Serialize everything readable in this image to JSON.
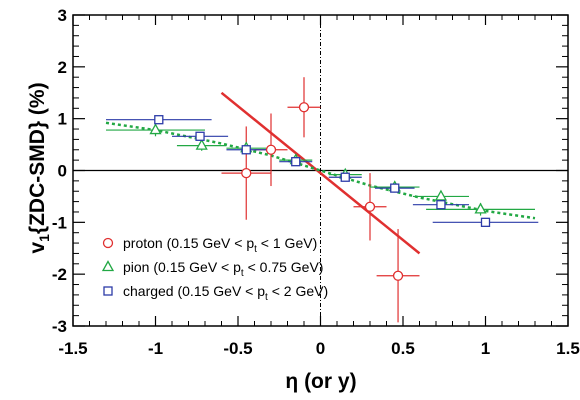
{
  "chart_data": {
    "type": "scatter",
    "title": "",
    "xlabel": "η (or y)",
    "ylabel_main": "v",
    "ylabel_sub": "1",
    "ylabel_rest": "{ZDC-SMD} (%)",
    "xlim": [
      -1.5,
      1.5
    ],
    "ylim": [
      -3,
      3
    ],
    "x_ticks": [
      -1.5,
      -1,
      -0.5,
      0,
      0.5,
      1,
      1.5
    ],
    "x_tick_labels": [
      "-1.5",
      "-1",
      "-0.5",
      "0",
      "0.5",
      "1",
      "1.5"
    ],
    "y_ticks": [
      -3,
      -2,
      -1,
      0,
      1,
      2,
      3
    ],
    "y_tick_labels": [
      "-3",
      "-2",
      "-1",
      "0",
      "1",
      "2",
      "3"
    ],
    "grid": false,
    "legend_position": "bottom-left",
    "series": [
      {
        "name": "proton (0.15 GeV < p_t < 1 GeV)",
        "legend_parts": [
          "proton (0.15 GeV < p",
          "t",
          " < 1 GeV)"
        ],
        "marker": "circle",
        "color": "#e03030",
        "points": [
          {
            "x": -0.45,
            "y": -0.05,
            "xerr": 0.15,
            "yerr": 0.9
          },
          {
            "x": -0.3,
            "y": 0.4,
            "xerr": 0.1,
            "yerr": 0.7
          },
          {
            "x": -0.1,
            "y": 1.22,
            "xerr": 0.1,
            "yerr": 0.58
          },
          {
            "x": 0.3,
            "y": -0.7,
            "xerr": 0.1,
            "yerr": 0.65
          },
          {
            "x": 0.47,
            "y": -2.03,
            "xerr": 0.13,
            "yerr": 0.9
          }
        ]
      },
      {
        "name": "pion (0.15 GeV < p_t < 0.75 GeV)",
        "legend_parts": [
          "pion (0.15 GeV < p",
          "t",
          " < 0.75 GeV)"
        ],
        "marker": "triangle",
        "color": "#22a844",
        "points": [
          {
            "x": -1.0,
            "y": 0.78,
            "xerr": 0.3,
            "yerr": 0.12
          },
          {
            "x": -0.72,
            "y": 0.48,
            "xerr": 0.15,
            "yerr": 0.1
          },
          {
            "x": -0.45,
            "y": 0.43,
            "xerr": 0.12,
            "yerr": 0.1
          },
          {
            "x": -0.15,
            "y": 0.2,
            "xerr": 0.1,
            "yerr": 0.08
          },
          {
            "x": 0.15,
            "y": -0.08,
            "xerr": 0.1,
            "yerr": 0.08
          },
          {
            "x": 0.45,
            "y": -0.32,
            "xerr": 0.15,
            "yerr": 0.1
          },
          {
            "x": 0.73,
            "y": -0.5,
            "xerr": 0.17,
            "yerr": 0.1
          },
          {
            "x": 0.97,
            "y": -0.75,
            "xerr": 0.33,
            "yerr": 0.12
          }
        ]
      },
      {
        "name": "charged (0.15 GeV < p_t < 2 GeV)",
        "legend_parts": [
          "charged (0.15 GeV < p",
          "t",
          " < 2 GeV)"
        ],
        "marker": "square",
        "color": "#2c3ba8",
        "points": [
          {
            "x": -0.98,
            "y": 0.98,
            "xerr": 0.32,
            "yerr": 0.08
          },
          {
            "x": -0.73,
            "y": 0.66,
            "xerr": 0.17,
            "yerr": 0.07
          },
          {
            "x": -0.45,
            "y": 0.4,
            "xerr": 0.12,
            "yerr": 0.06
          },
          {
            "x": -0.15,
            "y": 0.17,
            "xerr": 0.1,
            "yerr": 0.06
          },
          {
            "x": 0.15,
            "y": -0.13,
            "xerr": 0.1,
            "yerr": 0.06
          },
          {
            "x": 0.45,
            "y": -0.34,
            "xerr": 0.12,
            "yerr": 0.06
          },
          {
            "x": 0.73,
            "y": -0.66,
            "xerr": 0.17,
            "yerr": 0.07
          },
          {
            "x": 1.0,
            "y": -1.0,
            "xerr": 0.32,
            "yerr": 0.08
          }
        ]
      }
    ],
    "lines": [
      {
        "name": "proton-fit",
        "color": "#e03030",
        "style": "solid",
        "points": [
          {
            "x": -0.6,
            "y": 1.5
          },
          {
            "x": 0.6,
            "y": -1.6
          }
        ]
      },
      {
        "name": "pion-fit",
        "color": "#22a844",
        "style": "dotted",
        "points": [
          {
            "x": -1.3,
            "y": 0.92
          },
          {
            "x": -1.0,
            "y": 0.78
          },
          {
            "x": -0.6,
            "y": 0.52
          },
          {
            "x": -0.3,
            "y": 0.29
          },
          {
            "x": 0,
            "y": 0
          },
          {
            "x": 0.3,
            "y": -0.29
          },
          {
            "x": 0.6,
            "y": -0.52
          },
          {
            "x": 1.0,
            "y": -0.78
          },
          {
            "x": 1.3,
            "y": -0.92
          }
        ]
      }
    ],
    "reference_lines": [
      {
        "name": "zero-line",
        "orientation": "horizontal",
        "value": 0,
        "style": "solid"
      },
      {
        "name": "eta-zero-line",
        "orientation": "vertical",
        "value": 0,
        "style": "dashdot"
      }
    ]
  }
}
